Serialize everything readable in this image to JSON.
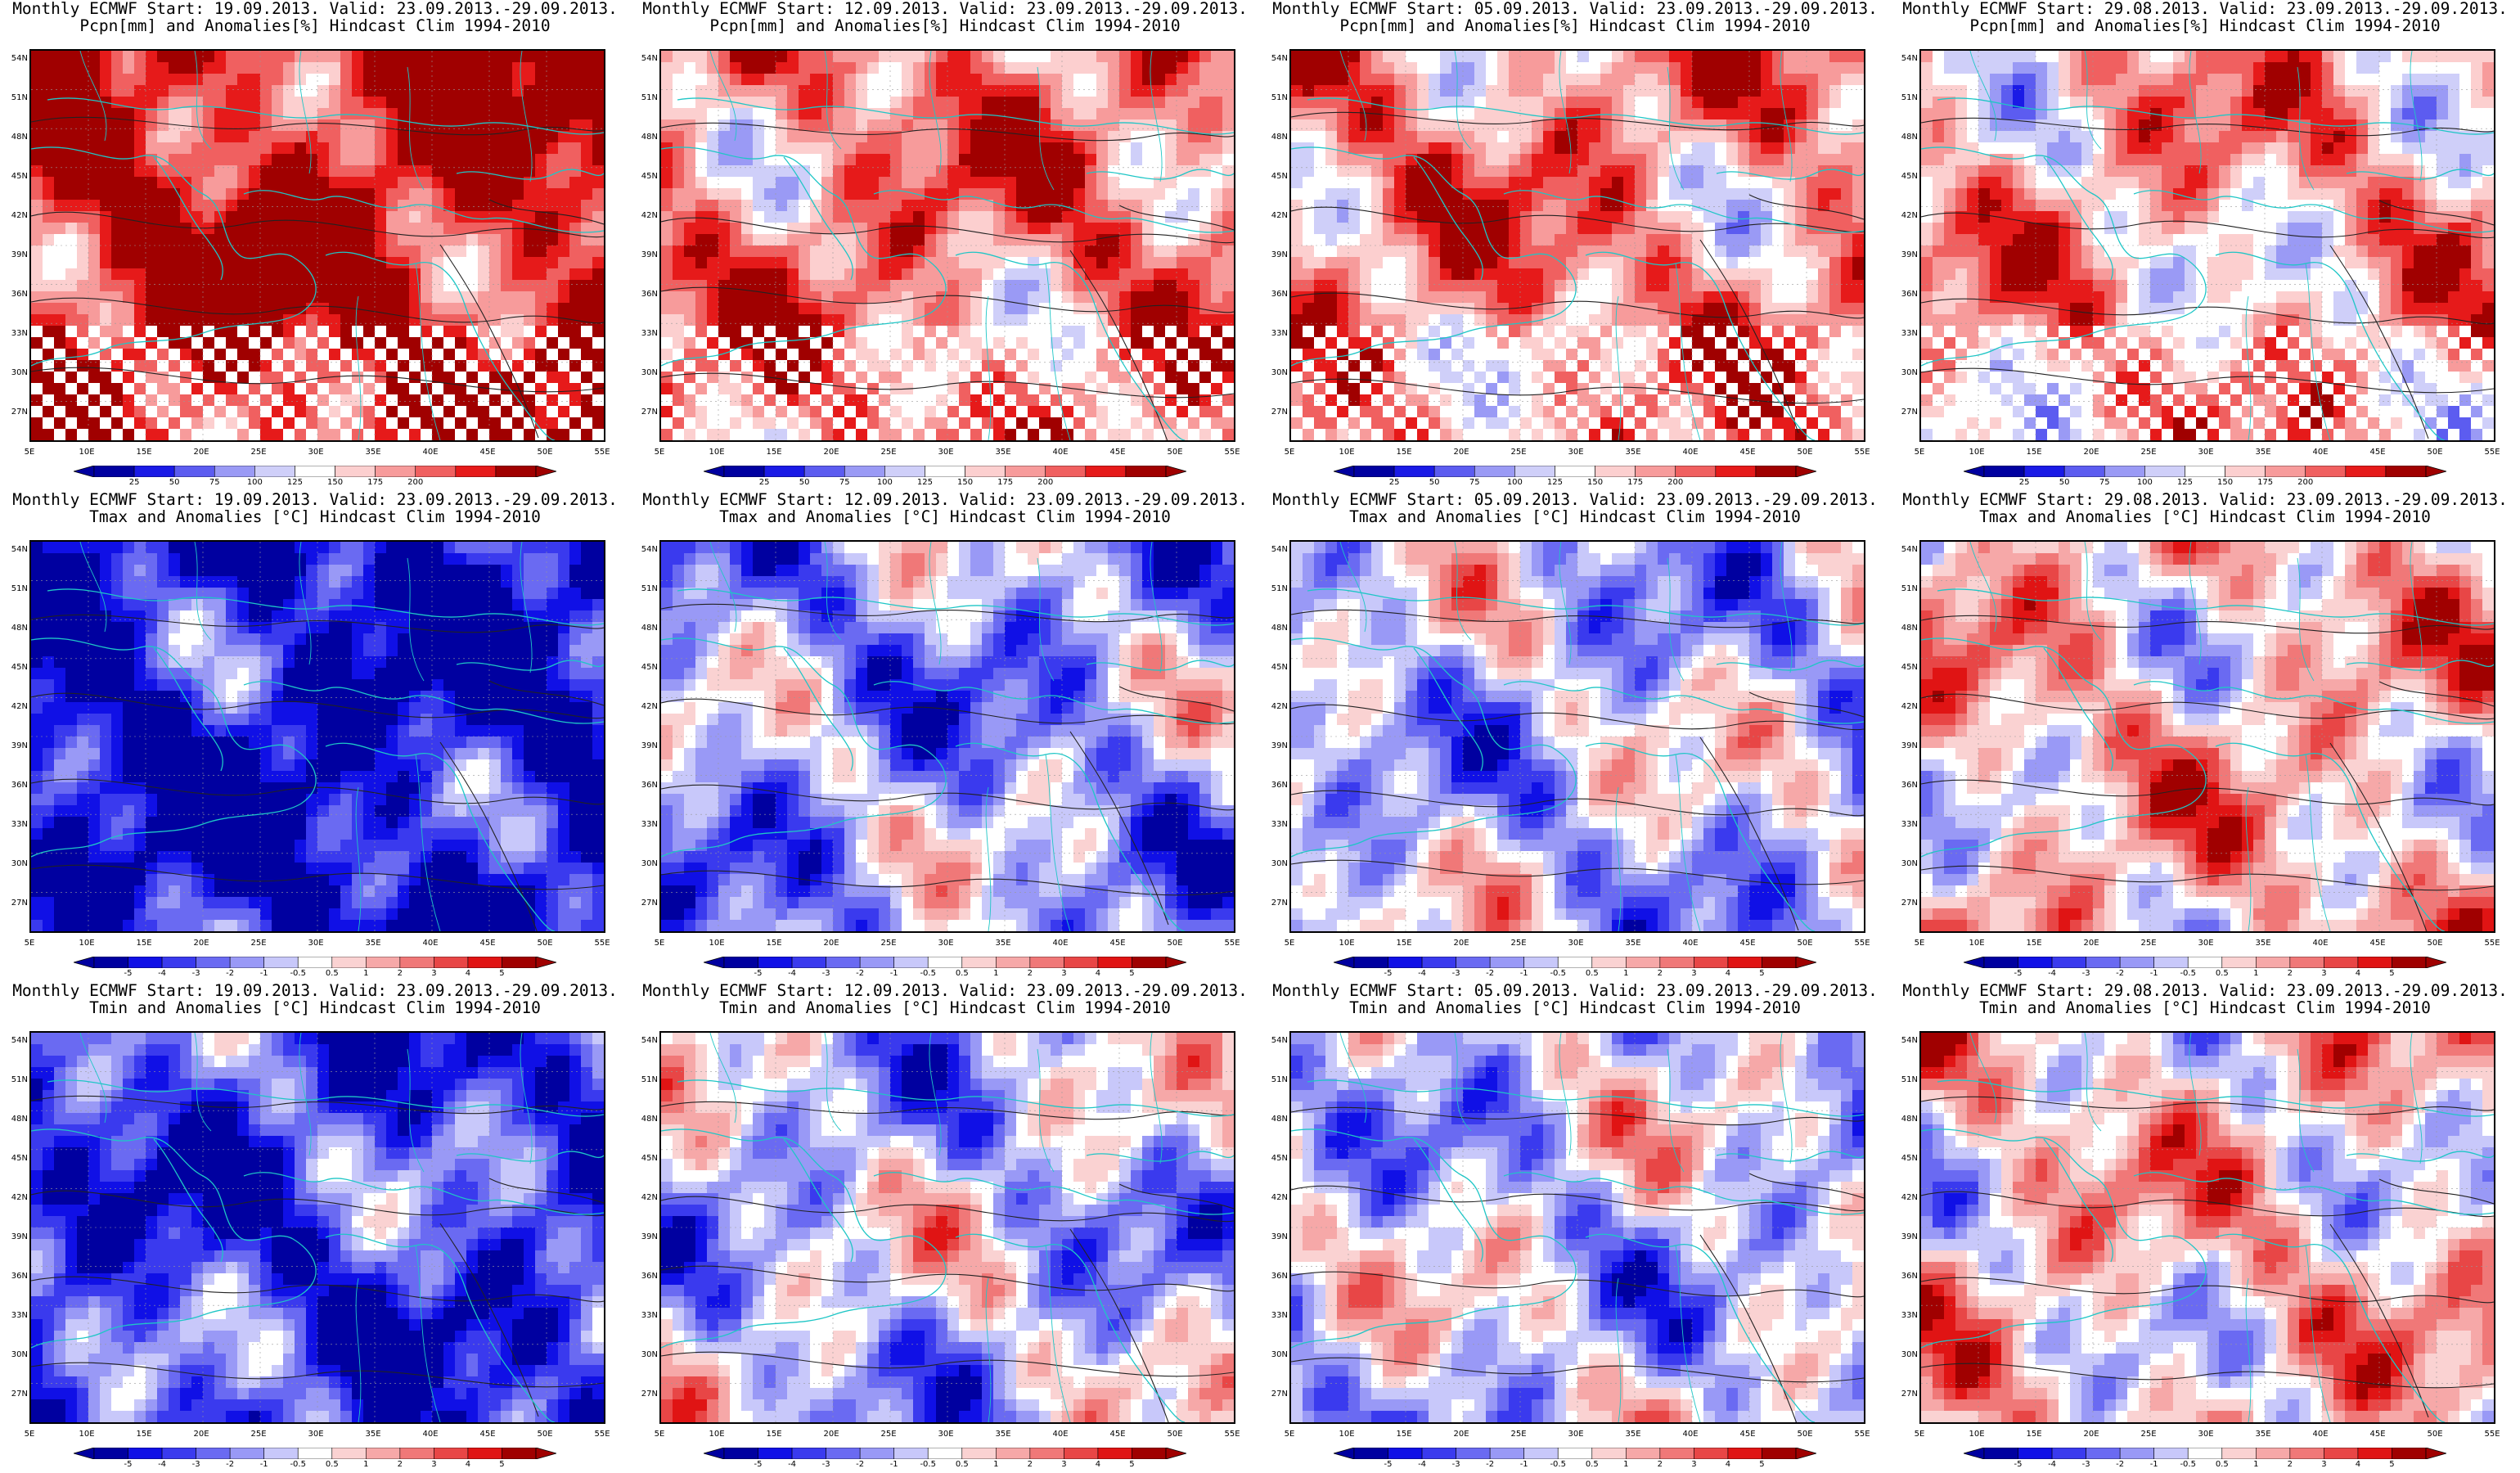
{
  "lat_ticks": [
    "54N",
    "51N",
    "48N",
    "45N",
    "42N",
    "39N",
    "36N",
    "33N",
    "30N",
    "27N"
  ],
  "lon_ticks": [
    "5E",
    "10E",
    "15E",
    "20E",
    "25E",
    "30E",
    "35E",
    "40E",
    "45E",
    "50E",
    "55E"
  ],
  "pcp_scale": {
    "labels": [
      "25",
      "50",
      "75",
      "100",
      "125",
      "150",
      "175",
      "200"
    ],
    "colors": [
      "#0000a0",
      "#1a1ae6",
      "#5c5cf0",
      "#9a9af5",
      "#cfcff9",
      "#ffffff",
      "#fccfcf",
      "#f79b9b",
      "#f06060",
      "#e61a1a",
      "#a00000"
    ]
  },
  "temp_scale": {
    "labels": [
      "-5",
      "-4",
      "-3",
      "-2",
      "-1",
      "-0.5",
      "0.5",
      "1",
      "2",
      "3",
      "4",
      "5"
    ],
    "colors": [
      "#0000a0",
      "#1010e6",
      "#3a3aee",
      "#6a6af2",
      "#9999f6",
      "#c8c8fa",
      "#ffffff",
      "#fad2d2",
      "#f6a8a8",
      "#f07878",
      "#e84646",
      "#e01414",
      "#a00000"
    ]
  },
  "panels": [
    {
      "row": 0,
      "col": 0,
      "var": "pcp",
      "bias": 1.0,
      "line1": "Monthly ECMWF Start: 19.09.2013. Valid: 23.09.2013.-29.09.2013.",
      "line2": "Pcpn[mm] and Anomalies[%] Hindcast Clim 1994-2010"
    },
    {
      "row": 0,
      "col": 1,
      "var": "pcp",
      "bias": 0.55,
      "line1": "Monthly ECMWF Start: 12.09.2013. Valid: 23.09.2013.-29.09.2013.",
      "line2": "Pcpn[mm] and Anomalies[%] Hindcast Clim 1994-2010"
    },
    {
      "row": 0,
      "col": 2,
      "var": "pcp",
      "bias": 0.5,
      "line1": "Monthly ECMWF Start: 05.09.2013. Valid: 23.09.2013.-29.09.2013.",
      "line2": "Pcpn[mm] and Anomalies[%] Hindcast Clim 1994-2010"
    },
    {
      "row": 0,
      "col": 3,
      "var": "pcp",
      "bias": 0.35,
      "line1": "Monthly ECMWF Start: 29.08.2013. Valid: 23.09.2013.-29.09.2013.",
      "line2": "Pcpn[mm] and Anomalies[%] Hindcast Clim 1994-2010"
    },
    {
      "row": 1,
      "col": 0,
      "var": "tmax",
      "bias": -1.0,
      "line1": "Monthly ECMWF Start: 19.09.2013. Valid: 23.09.2013.-29.09.2013.",
      "line2": "Tmax and Anomalies [°C] Hindcast Clim 1994-2010"
    },
    {
      "row": 1,
      "col": 1,
      "var": "tmax",
      "bias": -0.35,
      "line1": "Monthly ECMWF Start: 12.09.2013. Valid: 23.09.2013.-29.09.2013.",
      "line2": "Tmax and Anomalies [°C] Hindcast Clim 1994-2010"
    },
    {
      "row": 1,
      "col": 2,
      "var": "tmax",
      "bias": -0.2,
      "line1": "Monthly ECMWF Start: 05.09.2013. Valid: 23.09.2013.-29.09.2013.",
      "line2": "Tmax and Anomalies [°C] Hindcast Clim 1994-2010"
    },
    {
      "row": 1,
      "col": 3,
      "var": "tmax",
      "bias": 0.25,
      "line1": "Monthly ECMWF Start: 29.08.2013. Valid: 23.09.2013.-29.09.2013.",
      "line2": "Tmax and Anomalies [°C] Hindcast Clim 1994-2010"
    },
    {
      "row": 2,
      "col": 0,
      "var": "tmin",
      "bias": -0.75,
      "line1": "Monthly ECMWF Start: 19.09.2013. Valid: 23.09.2013.-29.09.2013.",
      "line2": "Tmin and Anomalies [°C] Hindcast Clim 1994-2010"
    },
    {
      "row": 2,
      "col": 1,
      "var": "tmin",
      "bias": -0.2,
      "line1": "Monthly ECMWF Start: 12.09.2013. Valid: 23.09.2013.-29.09.2013.",
      "line2": "Tmin and Anomalies [°C] Hindcast Clim 1994-2010"
    },
    {
      "row": 2,
      "col": 2,
      "var": "tmin",
      "bias": -0.15,
      "line1": "Monthly ECMWF Start: 05.09.2013. Valid: 23.09.2013.-29.09.2013.",
      "line2": "Tmin and Anomalies [°C] Hindcast Clim 1994-2010"
    },
    {
      "row": 2,
      "col": 3,
      "var": "tmin",
      "bias": 0.2,
      "line1": "Monthly ECMWF Start: 29.08.2013. Valid: 23.09.2013.-29.09.2013.",
      "line2": "Tmin and Anomalies [°C] Hindcast Clim 1994-2010"
    }
  ]
}
